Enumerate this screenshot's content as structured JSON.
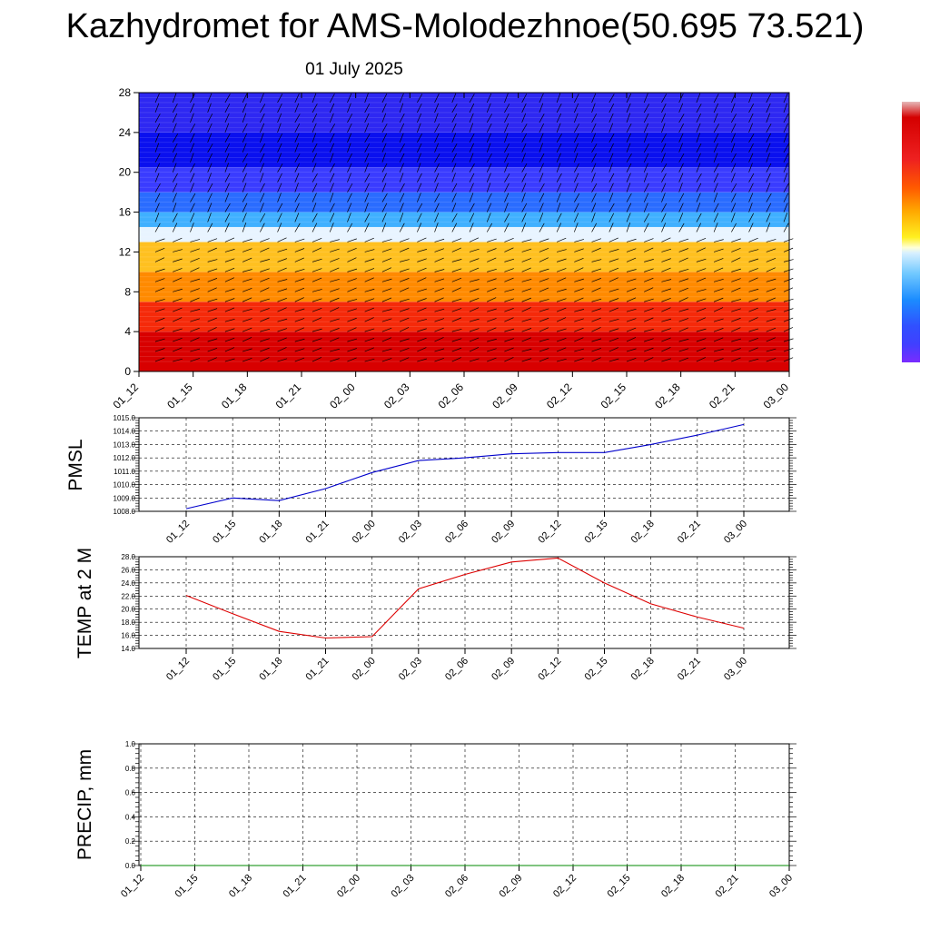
{
  "title": "Kazhydromet for AMS-Molodezhnoe(50.695 73.521)",
  "subtitle": "01 July 2025",
  "chart_data": [
    {
      "type": "heatmap",
      "title": "",
      "xlabel": "",
      "ylabel": "",
      "x": [
        "01_12",
        "01_15",
        "01_18",
        "01_21",
        "02_00",
        "02_03",
        "02_06",
        "02_09",
        "02_12",
        "02_15",
        "02_18",
        "02_21",
        "03_00"
      ],
      "y_ticks": [
        0,
        4,
        8,
        12,
        16,
        20,
        24,
        28
      ],
      "ylim": [
        0,
        28
      ],
      "color_bands": [
        {
          "from": 0,
          "to": 4,
          "color": "#d80000"
        },
        {
          "from": 4,
          "to": 7,
          "color": "#f52a0a"
        },
        {
          "from": 7,
          "to": 10,
          "color": "#ff8a00"
        },
        {
          "from": 10,
          "to": 13,
          "color": "#ffc020"
        },
        {
          "from": 13,
          "to": 14.5,
          "color": "#e8f4ff"
        },
        {
          "from": 14.5,
          "to": 16,
          "color": "#40b0ff"
        },
        {
          "from": 16,
          "to": 18,
          "color": "#2a6cff"
        },
        {
          "from": 18,
          "to": 20.5,
          "color": "#3a3cff"
        },
        {
          "from": 20.5,
          "to": 24,
          "color": "#0a10ef"
        },
        {
          "from": 24,
          "to": 28,
          "color": "#2e28f2"
        }
      ],
      "has_wind_barbs": true,
      "grid": false
    },
    {
      "type": "line",
      "ylabel": "PMSL",
      "x": [
        "01_12",
        "01_15",
        "01_18",
        "01_21",
        "02_00",
        "02_03",
        "02_06",
        "02_09",
        "02_12",
        "02_15",
        "02_18",
        "02_21",
        "03_00"
      ],
      "y_ticks": [
        "1008.0",
        "1009.0",
        "1010.0",
        "1011.0",
        "1012.0",
        "1013.0",
        "1014.0",
        "1015.0"
      ],
      "ylim": [
        1008,
        1015
      ],
      "series": [
        {
          "color": "#0000cc",
          "values": [
            1008.2,
            1009.0,
            1008.8,
            1009.7,
            1010.9,
            1011.8,
            1012.0,
            1012.3,
            1012.4,
            1012.4,
            1013.0,
            1013.7,
            1014.5
          ]
        }
      ],
      "grid": true
    },
    {
      "type": "line",
      "ylabel": "TEMP at 2 M",
      "x": [
        "01_12",
        "01_15",
        "01_18",
        "01_21",
        "02_00",
        "02_03",
        "02_06",
        "02_09",
        "02_12",
        "02_15",
        "02_18",
        "02_21",
        "03_00"
      ],
      "y_ticks": [
        "14.0",
        "16.0",
        "18.0",
        "20.0",
        "22.0",
        "24.0",
        "26.0",
        "28.0"
      ],
      "ylim": [
        14,
        28
      ],
      "series": [
        {
          "color": "#dd0000",
          "values": [
            22.1,
            19.3,
            16.6,
            15.6,
            15.8,
            23.1,
            25.3,
            27.2,
            27.8,
            24.0,
            20.8,
            18.8,
            17.1
          ]
        }
      ],
      "grid": true
    },
    {
      "type": "line",
      "ylabel": "PRECIP, mm",
      "x": [
        "01_12",
        "01_15",
        "01_18",
        "01_21",
        "02_00",
        "02_03",
        "02_06",
        "02_09",
        "02_12",
        "02_15",
        "02_18",
        "02_21",
        "03_00"
      ],
      "y_ticks": [
        "0.0",
        "0.2",
        "0.4",
        "0.6",
        "0.8",
        "1.0"
      ],
      "ylim": [
        0,
        1
      ],
      "series": [
        {
          "color": "#008800",
          "values": [
            0,
            0,
            0,
            0,
            0,
            0,
            0,
            0,
            0,
            0,
            0,
            0,
            0
          ]
        }
      ],
      "grid": true
    }
  ],
  "colors": {
    "colorbar_top": "#e6b8b8",
    "colorbar_bottom": "#7a2cff"
  }
}
